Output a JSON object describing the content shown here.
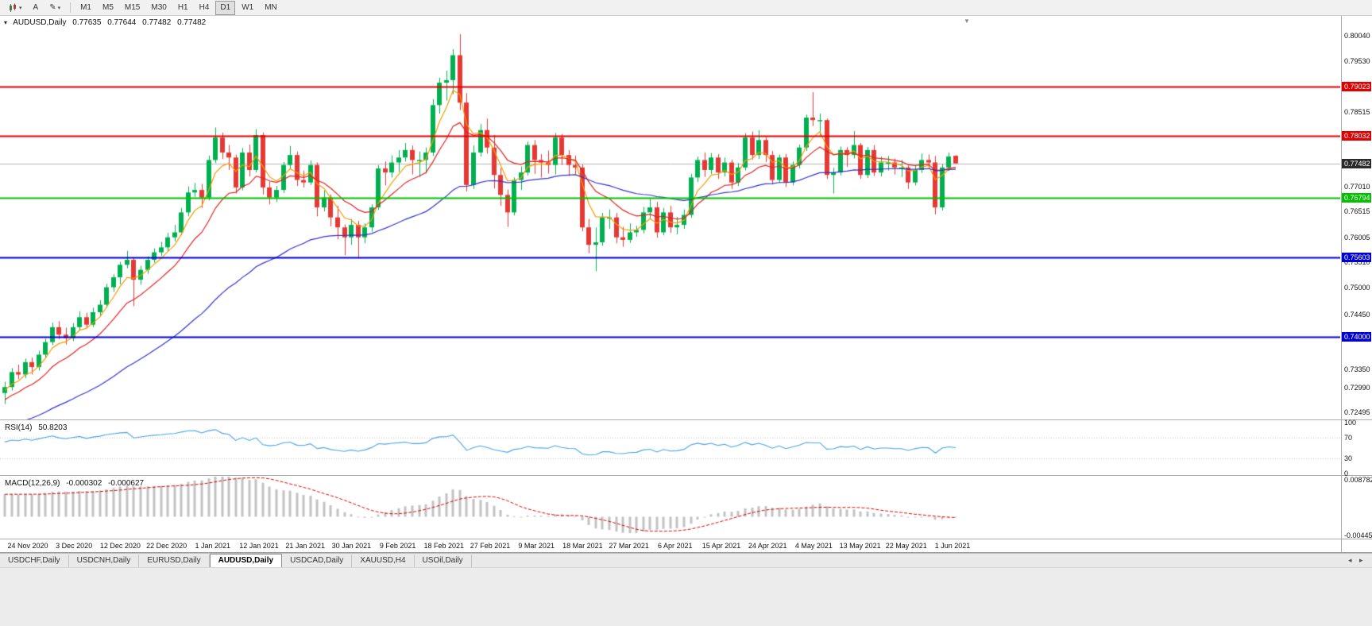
{
  "toolbar": {
    "cursor_label": "A",
    "timeframes": [
      "M1",
      "M5",
      "M15",
      "M30",
      "H1",
      "H4",
      "D1",
      "W1",
      "MN"
    ],
    "active_timeframe": "D1"
  },
  "chart": {
    "symbol_period": "AUDUSD,Daily",
    "open": "0.77635",
    "high": "0.77644",
    "low": "0.77482",
    "close": "0.77482"
  },
  "price_axis": {
    "ticks": [
      {
        "label": "0.80040",
        "value": 0.8004
      },
      {
        "label": "0.79530",
        "value": 0.7953
      },
      {
        "label": "0.78515",
        "value": 0.78515
      },
      {
        "label": "0.77010",
        "value": 0.7701
      },
      {
        "label": "0.76515",
        "value": 0.76515
      },
      {
        "label": "0.76005",
        "value": 0.76005
      },
      {
        "label": "0.75510",
        "value": 0.7551
      },
      {
        "label": "0.75000",
        "value": 0.75
      },
      {
        "label": "0.74450",
        "value": 0.7445
      },
      {
        "label": "0.73350",
        "value": 0.7335
      },
      {
        "label": "0.72990",
        "value": 0.7299
      },
      {
        "label": "0.72495",
        "value": 0.72495
      }
    ],
    "current": {
      "label": "0.77482",
      "value": 0.77482,
      "badge_color": "#2b2b2b",
      "line_color": "#b4b4b4"
    }
  },
  "rsi_panel": {
    "name": "RSI(14)",
    "value": "50.8203",
    "period": 14,
    "color": "#4ba3e3",
    "level_color": "#c9c9c9",
    "levels": [
      70,
      30
    ],
    "seed_gain": 0.0013,
    "seed_loss": 0.0008,
    "scale": [
      {
        "label": "100",
        "value": 100
      },
      {
        "label": "70",
        "value": 70
      },
      {
        "label": "30",
        "value": 30
      },
      {
        "label": "0",
        "value": 0
      }
    ]
  },
  "macd_panel": {
    "name": "MACD(12,26,9)",
    "value_main": "-0.000302",
    "value_signal": "-0.000627",
    "fast": 12,
    "slow": 26,
    "signal": 9,
    "hist_color": "#c2c2c2",
    "signal_color": "#d40000",
    "seed_fast": 0.727,
    "seed_slow": 0.7215,
    "scale": [
      {
        "label": "0.008782",
        "value": 0.008782
      },
      {
        "label": "-0.004451",
        "value": -0.004451
      }
    ]
  },
  "tabs": {
    "items": [
      "USDCHF,Daily",
      "USDCNH,Daily",
      "EURUSD,Daily",
      "AUDUSD,Daily",
      "USDCAD,Daily",
      "XAUUSD,H4",
      "USOil,Daily"
    ],
    "active": "AUDUSD,Daily",
    "scroll_left": "◂",
    "scroll_right": "▸"
  },
  "chart_data": {
    "type": "candlestick",
    "symbol": "AUDUSD",
    "period": "Daily",
    "bull_color": "#00b050",
    "bear_color": "#e53935",
    "y_axis_range": [
      0.7235,
      0.8044
    ],
    "x_axis_labels": [
      "24 Nov 2020",
      "3 Dec 2020",
      "12 Dec 2020",
      "22 Dec 2020",
      "1 Jan 2021",
      "12 Jan 2021",
      "21 Jan 2021",
      "30 Jan 2021",
      "9 Feb 2021",
      "18 Feb 2021",
      "27 Feb 2021",
      "9 Mar 2021",
      "18 Mar 2021",
      "27 Mar 2021",
      "6 Apr 2021",
      "15 Apr 2021",
      "24 Apr 2021",
      "4 May 2021",
      "13 May 2021",
      "22 May 2021",
      "1 Jun 2021"
    ],
    "hlines": [
      {
        "label": "0.79023",
        "value": 0.79023,
        "color": "#e00000",
        "type": "resistance"
      },
      {
        "label": "0.78032",
        "value": 0.78032,
        "color": "#e00000",
        "type": "resistance"
      },
      {
        "label": "0.76794",
        "value": 0.76794,
        "color": "#00c000",
        "type": "support"
      },
      {
        "label": "0.75603",
        "value": 0.75603,
        "color": "#0000d0",
        "type": "support"
      },
      {
        "label": "0.74000",
        "value": 0.74,
        "color": "#0000d0",
        "type": "support"
      }
    ],
    "moving_averages": [
      {
        "period": 5,
        "method": "ema",
        "color": "#f59b00",
        "seed": 0.729
      },
      {
        "period": 12,
        "method": "ema",
        "color": "#e02020",
        "seed": 0.727
      },
      {
        "period": 45,
        "method": "ema",
        "color": "#3333cc",
        "seed": 0.7215
      }
    ],
    "candles": [
      [
        0.7288,
        0.7311,
        0.7266,
        0.73
      ],
      [
        0.73,
        0.7338,
        0.7293,
        0.733
      ],
      [
        0.733,
        0.7345,
        0.7316,
        0.7325
      ],
      [
        0.7325,
        0.7357,
        0.7318,
        0.735
      ],
      [
        0.735,
        0.7359,
        0.7325,
        0.734
      ],
      [
        0.734,
        0.7373,
        0.7333,
        0.7365
      ],
      [
        0.7365,
        0.7397,
        0.7358,
        0.739
      ],
      [
        0.739,
        0.7429,
        0.7384,
        0.742
      ],
      [
        0.742,
        0.7432,
        0.7396,
        0.7405
      ],
      [
        0.7405,
        0.7419,
        0.7385,
        0.7398
      ],
      [
        0.7398,
        0.7428,
        0.7392,
        0.742
      ],
      [
        0.742,
        0.7452,
        0.7413,
        0.744
      ],
      [
        0.744,
        0.7449,
        0.7418,
        0.7425
      ],
      [
        0.7425,
        0.7459,
        0.742,
        0.745
      ],
      [
        0.745,
        0.7474,
        0.7441,
        0.7465
      ],
      [
        0.7465,
        0.7507,
        0.7459,
        0.75
      ],
      [
        0.75,
        0.7526,
        0.7491,
        0.752
      ],
      [
        0.752,
        0.7551,
        0.7506,
        0.7545
      ],
      [
        0.7545,
        0.7573,
        0.7538,
        0.7555
      ],
      [
        0.7555,
        0.756,
        0.7462,
        0.7515
      ],
      [
        0.7515,
        0.7543,
        0.7505,
        0.7535
      ],
      [
        0.7535,
        0.7562,
        0.7527,
        0.7555
      ],
      [
        0.7555,
        0.7578,
        0.7549,
        0.757
      ],
      [
        0.757,
        0.7591,
        0.7563,
        0.758
      ],
      [
        0.758,
        0.7609,
        0.7571,
        0.76
      ],
      [
        0.76,
        0.7625,
        0.7592,
        0.761
      ],
      [
        0.761,
        0.7659,
        0.7604,
        0.765
      ],
      [
        0.765,
        0.7702,
        0.7642,
        0.769
      ],
      [
        0.769,
        0.7709,
        0.7681,
        0.7695
      ],
      [
        0.7695,
        0.7707,
        0.7659,
        0.768
      ],
      [
        0.768,
        0.7764,
        0.7674,
        0.7755
      ],
      [
        0.7755,
        0.782,
        0.7749,
        0.78
      ],
      [
        0.78,
        0.781,
        0.7757,
        0.777
      ],
      [
        0.777,
        0.7785,
        0.7735,
        0.776
      ],
      [
        0.776,
        0.7766,
        0.7688,
        0.77
      ],
      [
        0.77,
        0.7779,
        0.7694,
        0.777
      ],
      [
        0.777,
        0.7786,
        0.7722,
        0.7735
      ],
      [
        0.7735,
        0.7817,
        0.773,
        0.7805
      ],
      [
        0.7805,
        0.781,
        0.7686,
        0.77
      ],
      [
        0.77,
        0.7712,
        0.7666,
        0.768
      ],
      [
        0.768,
        0.7703,
        0.7671,
        0.7695
      ],
      [
        0.7695,
        0.7751,
        0.7689,
        0.7745
      ],
      [
        0.7745,
        0.7783,
        0.7738,
        0.7765
      ],
      [
        0.7765,
        0.7772,
        0.7703,
        0.7715
      ],
      [
        0.7715,
        0.7734,
        0.77,
        0.771
      ],
      [
        0.771,
        0.7754,
        0.7705,
        0.7745
      ],
      [
        0.7745,
        0.775,
        0.7642,
        0.766
      ],
      [
        0.766,
        0.7694,
        0.7652,
        0.768
      ],
      [
        0.768,
        0.7686,
        0.7622,
        0.764
      ],
      [
        0.764,
        0.7663,
        0.7596,
        0.762
      ],
      [
        0.762,
        0.7626,
        0.7564,
        0.76
      ],
      [
        0.76,
        0.7637,
        0.7585,
        0.7625
      ],
      [
        0.7625,
        0.7633,
        0.7558,
        0.76
      ],
      [
        0.76,
        0.7628,
        0.7588,
        0.762
      ],
      [
        0.762,
        0.7666,
        0.7611,
        0.766
      ],
      [
        0.766,
        0.7745,
        0.7655,
        0.7738
      ],
      [
        0.7738,
        0.7752,
        0.7704,
        0.773
      ],
      [
        0.773,
        0.7764,
        0.772,
        0.775
      ],
      [
        0.775,
        0.7775,
        0.7731,
        0.776
      ],
      [
        0.776,
        0.7789,
        0.7752,
        0.7775
      ],
      [
        0.7775,
        0.7784,
        0.7726,
        0.7755
      ],
      [
        0.7755,
        0.7772,
        0.7721,
        0.7755
      ],
      [
        0.7755,
        0.778,
        0.7728,
        0.777
      ],
      [
        0.777,
        0.7877,
        0.7763,
        0.7865
      ],
      [
        0.7865,
        0.792,
        0.7848,
        0.791
      ],
      [
        0.791,
        0.7934,
        0.7874,
        0.7915
      ],
      [
        0.7915,
        0.7977,
        0.7887,
        0.7965
      ],
      [
        0.7965,
        0.8007,
        0.7855,
        0.787
      ],
      [
        0.787,
        0.7889,
        0.7692,
        0.7705
      ],
      [
        0.7705,
        0.7784,
        0.7697,
        0.777
      ],
      [
        0.777,
        0.7827,
        0.7762,
        0.7815
      ],
      [
        0.7815,
        0.7838,
        0.7768,
        0.778
      ],
      [
        0.778,
        0.7805,
        0.7698,
        0.7725
      ],
      [
        0.7725,
        0.7739,
        0.7663,
        0.7685
      ],
      [
        0.7685,
        0.7696,
        0.7621,
        0.765
      ],
      [
        0.765,
        0.772,
        0.7644,
        0.7715
      ],
      [
        0.7715,
        0.7742,
        0.7695,
        0.773
      ],
      [
        0.773,
        0.7792,
        0.7724,
        0.7785
      ],
      [
        0.7785,
        0.7795,
        0.7727,
        0.7755
      ],
      [
        0.7755,
        0.7767,
        0.772,
        0.775
      ],
      [
        0.775,
        0.7774,
        0.7728,
        0.7745
      ],
      [
        0.7745,
        0.7809,
        0.7726,
        0.78
      ],
      [
        0.78,
        0.7807,
        0.7745,
        0.7765
      ],
      [
        0.7765,
        0.7775,
        0.7723,
        0.7745
      ],
      [
        0.7745,
        0.7764,
        0.7726,
        0.774
      ],
      [
        0.774,
        0.7746,
        0.7612,
        0.762
      ],
      [
        0.762,
        0.7637,
        0.7568,
        0.7585
      ],
      [
        0.7585,
        0.762,
        0.7532,
        0.759
      ],
      [
        0.759,
        0.7649,
        0.7583,
        0.764
      ],
      [
        0.764,
        0.7656,
        0.7617,
        0.764
      ],
      [
        0.764,
        0.7649,
        0.7588,
        0.76
      ],
      [
        0.76,
        0.7621,
        0.7581,
        0.7595
      ],
      [
        0.7595,
        0.7628,
        0.7589,
        0.761
      ],
      [
        0.761,
        0.7623,
        0.7601,
        0.7615
      ],
      [
        0.7615,
        0.7661,
        0.7608,
        0.765
      ],
      [
        0.765,
        0.7677,
        0.7637,
        0.766
      ],
      [
        0.766,
        0.7671,
        0.7599,
        0.761
      ],
      [
        0.761,
        0.7659,
        0.7604,
        0.765
      ],
      [
        0.765,
        0.7663,
        0.7609,
        0.762
      ],
      [
        0.762,
        0.7641,
        0.7606,
        0.7625
      ],
      [
        0.7625,
        0.7656,
        0.7617,
        0.7645
      ],
      [
        0.7645,
        0.7727,
        0.7639,
        0.772
      ],
      [
        0.772,
        0.7762,
        0.7711,
        0.7755
      ],
      [
        0.7755,
        0.777,
        0.7721,
        0.7735
      ],
      [
        0.7735,
        0.7769,
        0.7727,
        0.776
      ],
      [
        0.776,
        0.7767,
        0.7717,
        0.773
      ],
      [
        0.773,
        0.776,
        0.7722,
        0.775
      ],
      [
        0.775,
        0.7756,
        0.7697,
        0.771
      ],
      [
        0.771,
        0.7749,
        0.7703,
        0.774
      ],
      [
        0.774,
        0.7809,
        0.7734,
        0.78
      ],
      [
        0.78,
        0.7812,
        0.7756,
        0.7765
      ],
      [
        0.7765,
        0.7815,
        0.7757,
        0.7795
      ],
      [
        0.7795,
        0.7801,
        0.7751,
        0.7765
      ],
      [
        0.7765,
        0.7773,
        0.7706,
        0.7715
      ],
      [
        0.7715,
        0.7766,
        0.7709,
        0.776
      ],
      [
        0.776,
        0.7767,
        0.7701,
        0.771
      ],
      [
        0.771,
        0.7752,
        0.7704,
        0.7745
      ],
      [
        0.7745,
        0.7786,
        0.7738,
        0.778
      ],
      [
        0.778,
        0.7846,
        0.7773,
        0.784
      ],
      [
        0.784,
        0.7891,
        0.7823,
        0.7835
      ],
      [
        0.7835,
        0.7848,
        0.7804,
        0.7835
      ],
      [
        0.7835,
        0.7838,
        0.7717,
        0.7725
      ],
      [
        0.7725,
        0.7739,
        0.7688,
        0.773
      ],
      [
        0.773,
        0.7782,
        0.7724,
        0.7775
      ],
      [
        0.7775,
        0.7781,
        0.7741,
        0.7765
      ],
      [
        0.7765,
        0.7813,
        0.7758,
        0.7785
      ],
      [
        0.7785,
        0.7789,
        0.7717,
        0.7725
      ],
      [
        0.7725,
        0.7781,
        0.7719,
        0.7775
      ],
      [
        0.7775,
        0.7785,
        0.7723,
        0.773
      ],
      [
        0.773,
        0.7762,
        0.7722,
        0.775
      ],
      [
        0.775,
        0.7763,
        0.7734,
        0.775
      ],
      [
        0.775,
        0.7758,
        0.7726,
        0.774
      ],
      [
        0.774,
        0.7755,
        0.7721,
        0.774
      ],
      [
        0.774,
        0.7744,
        0.7697,
        0.771
      ],
      [
        0.771,
        0.7744,
        0.7704,
        0.7735
      ],
      [
        0.7735,
        0.7768,
        0.7729,
        0.7755
      ],
      [
        0.7755,
        0.7766,
        0.7737,
        0.775
      ],
      [
        0.775,
        0.7763,
        0.7646,
        0.766
      ],
      [
        0.766,
        0.7747,
        0.7654,
        0.774
      ],
      [
        0.774,
        0.777,
        0.7733,
        0.7762
      ],
      [
        0.77635,
        0.77644,
        0.77482,
        0.77482
      ]
    ]
  }
}
